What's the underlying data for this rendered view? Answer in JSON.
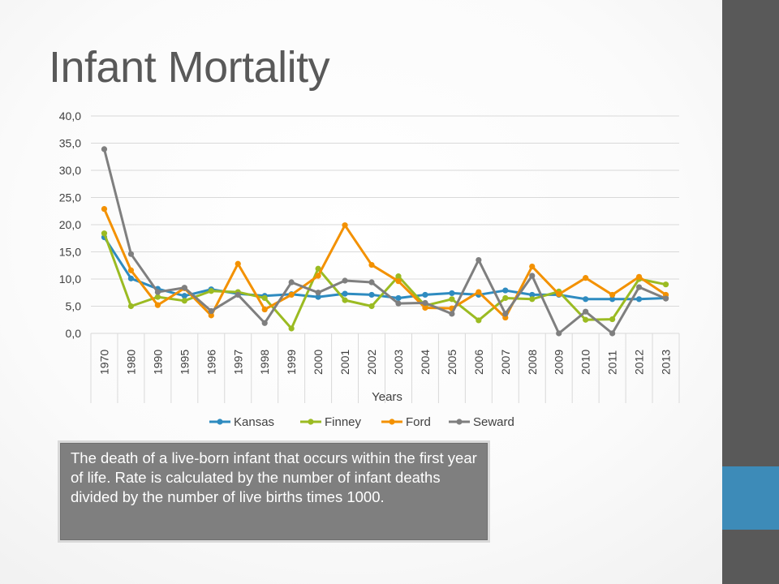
{
  "slide": {
    "title": "Infant Mortality",
    "description": "The death of a live-born infant that occurs within the first year of life. Rate is calculated by the number of infant deaths divided by the number of live births times 1000."
  },
  "theme": {
    "accent": "#3d8bb8",
    "sidebar": "#595959",
    "box": "#7f7f7f"
  },
  "chart_data": {
    "type": "line",
    "title": "",
    "xlabel": "Years",
    "ylabel": "",
    "ylim": [
      0,
      40
    ],
    "y_ticks": [
      "0,0",
      "5,0",
      "10,0",
      "15,0",
      "20,0",
      "25,0",
      "30,0",
      "35,0",
      "40,0"
    ],
    "y_tick_values": [
      0,
      5,
      10,
      15,
      20,
      25,
      30,
      35,
      40
    ],
    "grid": true,
    "legend": "bottom",
    "categories": [
      "1970",
      "1980",
      "1990",
      "1995",
      "1996",
      "1997",
      "1998",
      "1999",
      "2000",
      "2001",
      "2002",
      "2003",
      "2004",
      "2005",
      "2006",
      "2007",
      "2008",
      "2009",
      "2010",
      "2011",
      "2012",
      "2013"
    ],
    "series": [
      {
        "name": "Kansas",
        "color": "#2e8bc0",
        "values": [
          17.7,
          10.1,
          8.2,
          6.9,
          8.1,
          7.3,
          6.9,
          7.2,
          6.7,
          7.3,
          7.1,
          6.5,
          7.1,
          7.4,
          7.1,
          7.9,
          7.1,
          7.1,
          6.3,
          6.3,
          6.3,
          6.5
        ]
      },
      {
        "name": "Finney",
        "color": "#9bbb22",
        "values": [
          18.4,
          5.0,
          6.7,
          6.0,
          7.8,
          7.6,
          6.5,
          0.9,
          11.9,
          6.1,
          5.0,
          10.5,
          5.1,
          6.3,
          2.4,
          6.5,
          6.3,
          7.7,
          2.5,
          2.6,
          10.0,
          9.0
        ]
      },
      {
        "name": "Ford",
        "color": "#f39100",
        "values": [
          22.9,
          11.6,
          5.2,
          8.3,
          3.3,
          12.8,
          4.4,
          7.1,
          10.6,
          19.9,
          12.6,
          9.6,
          4.7,
          4.6,
          7.6,
          2.9,
          12.3,
          7.2,
          10.2,
          7.1,
          10.4,
          7.1
        ]
      },
      {
        "name": "Seward",
        "color": "#7f7f7f",
        "values": [
          33.9,
          14.6,
          7.6,
          8.4,
          4.1,
          7.1,
          1.9,
          9.4,
          7.5,
          9.7,
          9.4,
          5.5,
          5.6,
          3.6,
          13.5,
          3.6,
          10.6,
          0.0,
          4.0,
          0.0,
          8.5,
          6.4
        ]
      }
    ]
  }
}
